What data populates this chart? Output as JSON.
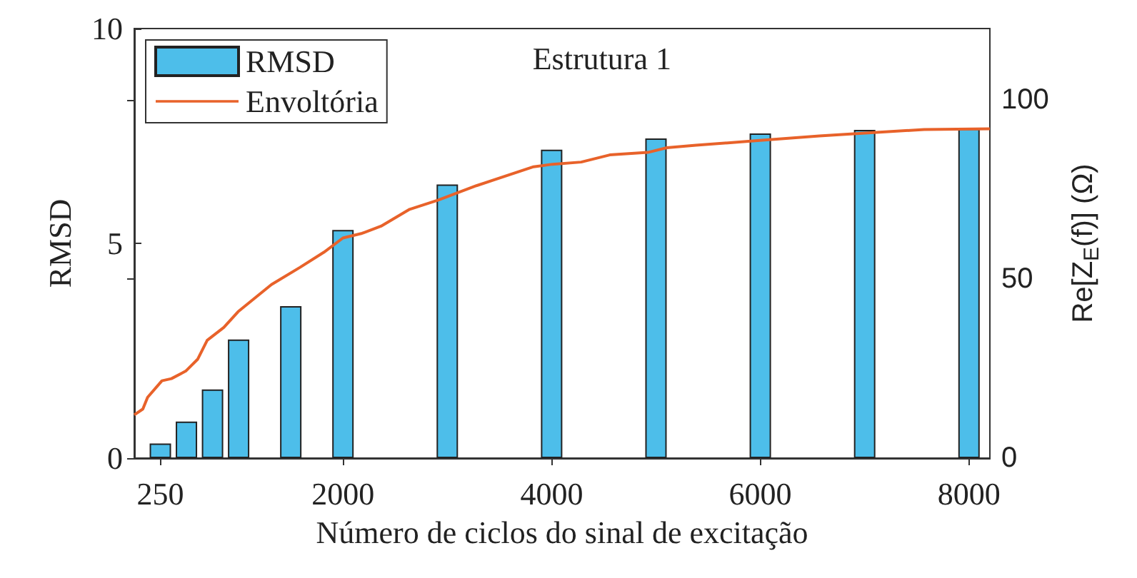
{
  "chart_data": {
    "type": "bar",
    "xlabel": "Número de ciclos do sinal de excitação",
    "ylabel": "RMSD",
    "y2label": "Re[Z$_{E}$(f)] (Ω)",
    "annotations": [
      "Estrutura 1"
    ],
    "xlim": [
      0,
      8200
    ],
    "xticks": [
      250,
      2000,
      4000,
      6000,
      8000
    ],
    "ylim": [
      0,
      10
    ],
    "yticks": [
      0,
      5,
      10
    ],
    "y2lim": [
      0,
      120
    ],
    "y2ticks": [
      0,
      50,
      100
    ],
    "grid": false,
    "legend": "top left",
    "series": [
      {
        "name": "RMSD",
        "color": "#4dbeea",
        "x": [
          250,
          500,
          750,
          1000,
          1500,
          2000,
          3000,
          4000,
          5000,
          6000,
          7000,
          8000
        ],
        "values": [
          0.34,
          0.85,
          1.6,
          2.76,
          3.54,
          5.31,
          6.37,
          7.18,
          7.44,
          7.56,
          7.64,
          7.67
        ]
      },
      {
        "name": "Envoltória",
        "type": "line",
        "axis": "y2",
        "color": "#e8622a",
        "x": [
          0,
          82,
          128,
          265,
          356,
          493,
          607,
          699,
          858,
          995,
          1315,
          1589,
          1817,
          2000,
          2183,
          2365,
          2639,
          2913,
          3279,
          3827,
          4009,
          4283,
          4557,
          4922,
          5105,
          5384,
          5973,
          6566,
          7114,
          7571,
          8200
        ],
        "values": [
          12.1,
          13.7,
          17.0,
          21.6,
          22.2,
          24.3,
          27.6,
          32.9,
          36.5,
          40.9,
          48.5,
          53.3,
          57.5,
          61.5,
          62.8,
          64.8,
          69.5,
          72.1,
          76.1,
          81.4,
          82.1,
          82.7,
          84.7,
          85.4,
          86.7,
          87.4,
          88.7,
          90.0,
          91.0,
          91.8,
          92.0
        ]
      }
    ]
  }
}
